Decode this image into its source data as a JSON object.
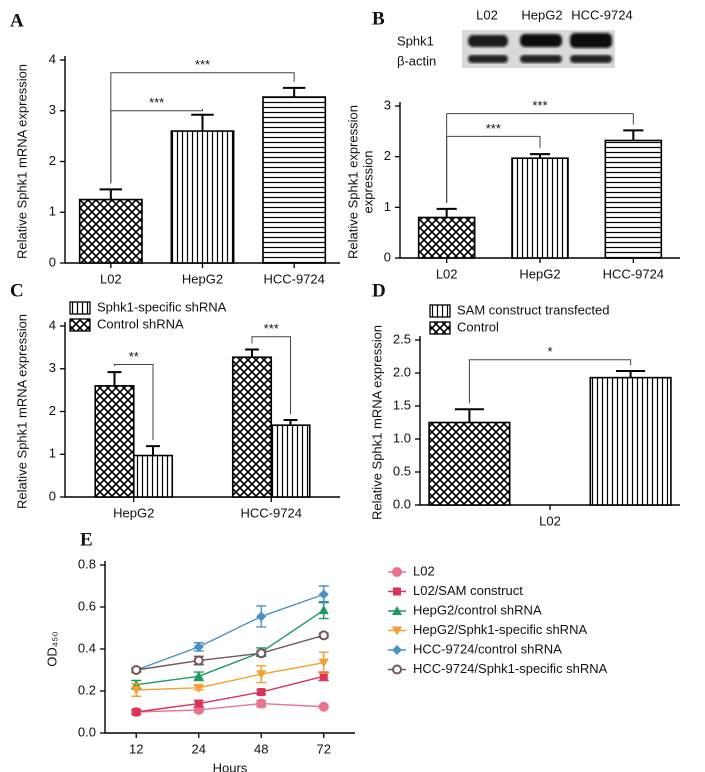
{
  "chart_data": [
    {
      "type": "bar",
      "panel_label": "A",
      "y_label": "Relative Sphk1 mRNA expression",
      "categories": [
        "L02",
        "HepG2",
        "HCC-9724"
      ],
      "patterns": [
        "crosshatch",
        "vertical",
        "horizontal"
      ],
      "series": [
        {
          "values": [
            1.25,
            2.6,
            3.27
          ],
          "errors": [
            0.2,
            0.32,
            0.18
          ]
        }
      ],
      "ylim": [
        0,
        4
      ],
      "yticks": [
        0,
        1,
        2,
        3,
        4
      ],
      "annotations": [
        "***",
        "***"
      ]
    },
    {
      "type": "bar",
      "panel_label": "B",
      "y_label": [
        "Relative Sphk1 expression",
        "expression"
      ],
      "blot": {
        "lanes": [
          "L02",
          "HepG2",
          "HCC-9724"
        ],
        "rows": [
          "Sphk1",
          "β-actin"
        ]
      },
      "categories": [
        "L02",
        "HepG2",
        "HCC-9724"
      ],
      "patterns": [
        "crosshatch",
        "vertical",
        "horizontal"
      ],
      "series": [
        {
          "values": [
            0.8,
            1.97,
            2.32
          ],
          "errors": [
            0.17,
            0.08,
            0.2
          ]
        }
      ],
      "ylim": [
        0,
        3
      ],
      "yticks": [
        0,
        1,
        2,
        3
      ],
      "annotations": [
        "***",
        "***"
      ]
    },
    {
      "type": "bar",
      "panel_label": "C",
      "y_label": "Relative Sphk1 mRNA expression",
      "categories": [
        "HepG2",
        "HCC-9724"
      ],
      "series": [
        {
          "name": "Sphk1-specific shRNA",
          "pattern": "vertical",
          "values": [
            0.97,
            1.68
          ],
          "errors": [
            0.22,
            0.12
          ]
        },
        {
          "name": "Control shRNA",
          "pattern": "crosshatch",
          "values": [
            2.6,
            3.27
          ],
          "errors": [
            0.32,
            0.18
          ]
        }
      ],
      "ylim": [
        0,
        4
      ],
      "yticks": [
        0,
        1,
        2,
        3,
        4
      ],
      "annotations": [
        "**",
        "***"
      ]
    },
    {
      "type": "bar",
      "panel_label": "D",
      "y_label": "Relative Sphk1 mRNA expression",
      "categories": [
        "L02"
      ],
      "series": [
        {
          "name": "SAM construct transfected",
          "pattern": "vertical",
          "values": [
            1.93
          ],
          "errors": [
            0.1
          ]
        },
        {
          "name": "Control",
          "pattern": "crosshatch",
          "values": [
            1.25
          ],
          "errors": [
            0.2
          ]
        }
      ],
      "ylim": [
        0,
        2.5
      ],
      "yticks": [
        {
          "value": 0,
          "label": "0.0"
        },
        {
          "value": 0.5,
          "label": "0.5"
        },
        {
          "value": 1,
          "label": "1.0"
        },
        {
          "value": 1.5,
          "label": "1.5"
        },
        {
          "value": 2,
          "label": "2.0"
        },
        {
          "value": 2.5,
          "label": "2.5"
        }
      ],
      "annotations": [
        "*"
      ]
    },
    {
      "type": "line",
      "panel_label": "E",
      "y_label": "OD₄₅₀",
      "x_label": "Hours",
      "categories": [
        "12",
        "24",
        "48",
        "72"
      ],
      "series": [
        {
          "name": "L02",
          "color": "#e9738f",
          "marker": "circle",
          "values": [
            0.1,
            0.11,
            0.14,
            0.125
          ],
          "errors": [
            0.005,
            0.01,
            0.015,
            0.005
          ]
        },
        {
          "name": "L02/SAM construct",
          "color": "#d9335c",
          "marker": "square",
          "values": [
            0.1,
            0.14,
            0.195,
            0.27
          ],
          "errors": [
            0.01,
            0.015,
            0.01,
            0.02
          ]
        },
        {
          "name": "HepG2/control shRNA",
          "color": "#1e9a5e",
          "marker": "triangle-up",
          "values": [
            0.23,
            0.27,
            0.385,
            0.585
          ],
          "errors": [
            0.02,
            0.02,
            0.02,
            0.04
          ]
        },
        {
          "name": "HepG2/Sphk1-specific shRNA",
          "color": "#f2a033",
          "marker": "triangle-down",
          "values": [
            0.205,
            0.215,
            0.28,
            0.335
          ],
          "errors": [
            0.03,
            0.01,
            0.04,
            0.05
          ]
        },
        {
          "name": "HCC-9724/control shRNA",
          "color": "#4b92c3",
          "marker": "diamond",
          "values": [
            0.3,
            0.41,
            0.555,
            0.66
          ],
          "errors": [
            0.01,
            0.02,
            0.05,
            0.04
          ]
        },
        {
          "name": "HCC-9724/Sphk1-specific shRNA",
          "color": "#74555a",
          "marker": "open-circle",
          "values": [
            0.3,
            0.345,
            0.38,
            0.465
          ],
          "errors": [
            0.01,
            0.02,
            0.01,
            0.01
          ]
        }
      ],
      "ylim": [
        0,
        0.8
      ],
      "yticks": [
        {
          "value": 0,
          "label": "0.0"
        },
        {
          "value": 0.2,
          "label": "0.2"
        },
        {
          "value": 0.4,
          "label": "0.4"
        },
        {
          "value": 0.6,
          "label": "0.6"
        },
        {
          "value": 0.8,
          "label": "0.8"
        }
      ]
    }
  ]
}
